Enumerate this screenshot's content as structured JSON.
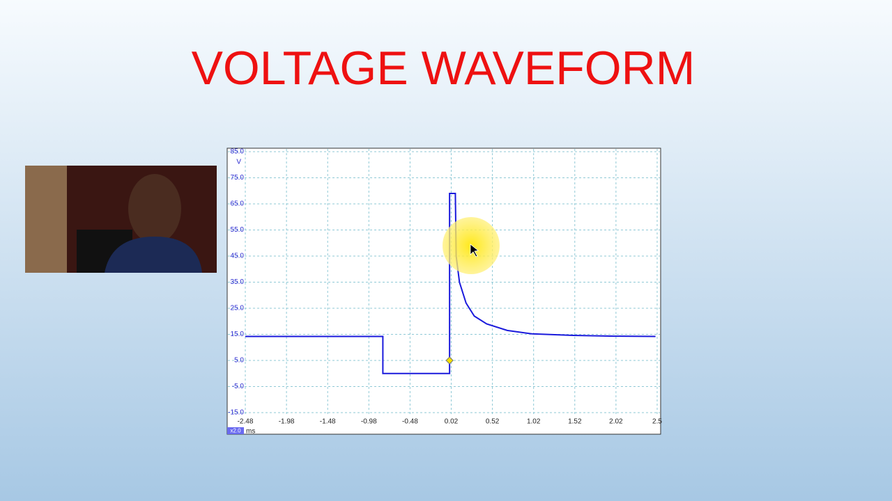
{
  "chart_data": {
    "type": "line",
    "title": "VOLTAGE WAVEFORM",
    "x_unit": "ms",
    "y_unit": "V",
    "zoom_label": "x2.0",
    "x": [
      -2.48,
      -0.81,
      -0.81,
      0.0,
      0.0,
      0.07,
      0.08,
      0.12,
      0.2,
      0.3,
      0.45,
      0.7,
      1.0,
      1.5,
      2.0,
      2.5
    ],
    "series": [
      {
        "color": "#1a1adc",
        "values": [
          14.2,
          14.2,
          0,
          0,
          69,
          69,
          45,
          35,
          27,
          22,
          19,
          16.5,
          15.2,
          14.6,
          14.3,
          14.2
        ]
      }
    ],
    "marker": {
      "x": 0.0,
      "y": 5
    },
    "xlim": [
      -2.48,
      2.52
    ],
    "ylim": [
      -15,
      85
    ],
    "xticks": [
      -2.48,
      -1.98,
      -1.48,
      -0.98,
      -0.48,
      0.02,
      0.52,
      1.02,
      1.52,
      2.02,
      {
        "value": 2.52,
        "label": "2.5"
      }
    ],
    "yticks": [
      {
        "value": -15,
        "label": "-15.0"
      },
      {
        "value": -5,
        "label": "-5.0"
      },
      {
        "value": 5,
        "label": "5.0"
      },
      {
        "value": 15,
        "label": "15.0"
      },
      {
        "value": 25,
        "label": "25.0"
      },
      {
        "value": 35,
        "label": "35.0"
      },
      {
        "value": 45,
        "label": "45.0"
      },
      {
        "value": 55,
        "label": "55.0"
      },
      {
        "value": 65,
        "label": "65.0"
      },
      {
        "value": 75,
        "label": "75.0"
      },
      {
        "value": 85,
        "label": "85.0"
      }
    ],
    "grid": true
  }
}
